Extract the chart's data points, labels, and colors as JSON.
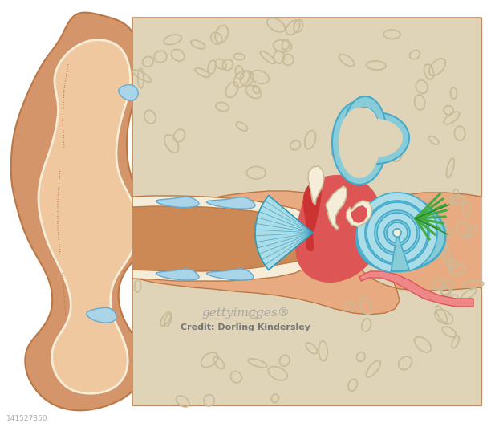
{
  "figsize": [
    6.12,
    5.32
  ],
  "dpi": 100,
  "background": "#ffffff",
  "box_bg": "#d8cfc8",
  "box_border": "#c8b8a8",
  "skin_dark": "#cc8855",
  "skin_mid": "#d4956a",
  "skin_light": "#e8aa80",
  "skin_vlight": "#f0c8a0",
  "cream": "#f5edd8",
  "cream2": "#ede0c0",
  "bone_bg": "#e0d4b8",
  "bone_spot": "#c8bc98",
  "canal_skin": "#cc8855",
  "red_bright": "#cc3333",
  "red_mid": "#dd5555",
  "red_light": "#ee8888",
  "teal": "#88ccd8",
  "teal_dark": "#44aacc",
  "teal_line": "#3399bb",
  "teal_fill": "#aadde8",
  "green": "#44aa44",
  "green_dark": "#228822",
  "blue_patch": "#aad4e8",
  "blue_patch_border": "#66aacc",
  "white": "#ffffff",
  "outline": "#bb7744",
  "text_gray": "#888888",
  "text_dark": "#555555",
  "num_gray": "#aaaaaa"
}
